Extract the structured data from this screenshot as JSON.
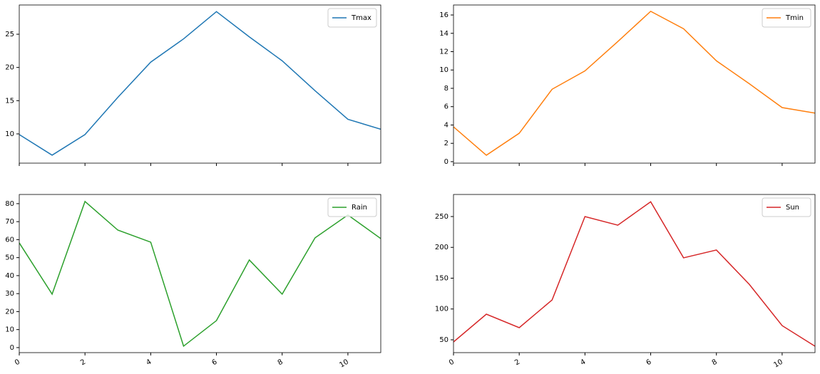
{
  "chart_data": [
    {
      "type": "line",
      "x": [
        0,
        1,
        2,
        3,
        4,
        5,
        6,
        7,
        8,
        9,
        10,
        11
      ],
      "series": [
        {
          "name": "Tmax",
          "color": "#1f77b4",
          "values": [
            9.9,
            6.8,
            9.9,
            15.5,
            20.8,
            24.3,
            28.4,
            24.6,
            21.0,
            16.5,
            12.2,
            10.7
          ]
        }
      ],
      "xlim": [
        0,
        11
      ],
      "xticks": [
        0,
        2,
        4,
        6,
        8,
        10
      ],
      "ylim": [
        5.6,
        29.4
      ],
      "yticks": [
        10,
        15,
        20,
        25
      ],
      "legend": "upper right"
    },
    {
      "type": "line",
      "x": [
        0,
        1,
        2,
        3,
        4,
        5,
        6,
        7,
        8,
        9,
        10,
        11
      ],
      "series": [
        {
          "name": "Tmin",
          "color": "#ff7f0e",
          "values": [
            3.8,
            0.7,
            3.1,
            7.9,
            9.9,
            13.1,
            16.4,
            14.5,
            11.0,
            8.5,
            5.9,
            5.3
          ]
        }
      ],
      "xlim": [
        0,
        11
      ],
      "xticks": [
        0,
        2,
        4,
        6,
        8,
        10
      ],
      "ylim": [
        -0.16,
        17.09
      ],
      "yticks": [
        0,
        2,
        4,
        6,
        8,
        10,
        12,
        14,
        16
      ],
      "legend": "upper right"
    },
    {
      "type": "line",
      "x": [
        0,
        1,
        2,
        3,
        4,
        5,
        6,
        7,
        8,
        9,
        10,
        11
      ],
      "series": [
        {
          "name": "Rain",
          "color": "#2ca02c",
          "values": [
            58.2,
            29.7,
            81.2,
            65.3,
            58.6,
            0.8,
            15.0,
            48.7,
            29.7,
            61.0,
            73.7,
            60.6
          ]
        }
      ],
      "xlim": [
        0,
        11
      ],
      "xticks": [
        0,
        2,
        4,
        6,
        8,
        10
      ],
      "ylim": [
        -2.8,
        85.1
      ],
      "yticks": [
        0,
        10,
        20,
        30,
        40,
        50,
        60,
        70,
        80
      ],
      "legend": "upper right"
    },
    {
      "type": "line",
      "x": [
        0,
        1,
        2,
        3,
        4,
        5,
        6,
        7,
        8,
        9,
        10,
        11
      ],
      "series": [
        {
          "name": "Sun",
          "color": "#d62728",
          "values": [
            46.5,
            91.6,
            69.7,
            114.7,
            250,
            236,
            274,
            183,
            195.7,
            140,
            73,
            39.6
          ]
        }
      ],
      "xlim": [
        0,
        11
      ],
      "xticks": [
        0,
        2,
        4,
        6,
        8,
        10
      ],
      "ylim": [
        29.2,
        285.8
      ],
      "yticks": [
        50,
        100,
        150,
        200,
        250
      ],
      "legend": "upper right"
    }
  ]
}
